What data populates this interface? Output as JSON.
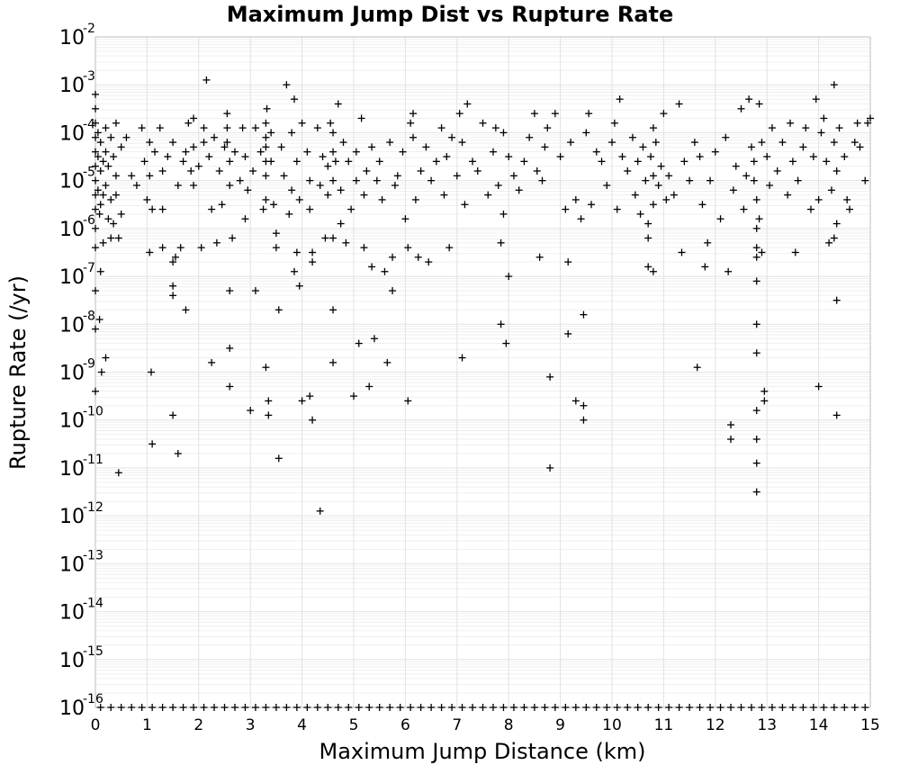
{
  "chart_data": {
    "type": "scatter",
    "title": "Maximum Jump Dist vs Rupture Rate",
    "xlabel": "Maximum Jump Distance (km)",
    "ylabel": "Rupture Rate (/yr)",
    "xlim": [
      0,
      15
    ],
    "ylim_exponents": [
      -16,
      -2
    ],
    "y_scale": "log",
    "grid": true,
    "marker": "plus",
    "x_ticks": [
      "0",
      "1",
      "2",
      "3",
      "4",
      "5",
      "6",
      "7",
      "8",
      "9",
      "10",
      "11",
      "12",
      "13",
      "14",
      "15"
    ],
    "y_ticks": [
      {
        "base": "10",
        "exp": "-2"
      },
      {
        "base": "10",
        "exp": "-3"
      },
      {
        "base": "10",
        "exp": "-4"
      },
      {
        "base": "10",
        "exp": "-5"
      },
      {
        "base": "10",
        "exp": "-6"
      },
      {
        "base": "10",
        "exp": "-7"
      },
      {
        "base": "10",
        "exp": "-8"
      },
      {
        "base": "10",
        "exp": "-9"
      },
      {
        "base": "10",
        "exp": "-10"
      },
      {
        "base": "10",
        "exp": "-11"
      },
      {
        "base": "10",
        "exp": "-12"
      },
      {
        "base": "10",
        "exp": "-13"
      },
      {
        "base": "10",
        "exp": "-14"
      },
      {
        "base": "10",
        "exp": "-15"
      },
      {
        "base": "10",
        "exp": "-16"
      }
    ],
    "points": [
      [
        0.0,
        -3.2
      ],
      [
        0.0,
        -3.5
      ],
      [
        0.0,
        -3.8
      ],
      [
        0.0,
        -4.1
      ],
      [
        0.0,
        -4.4
      ],
      [
        0.0,
        -4.7
      ],
      [
        0.0,
        -5.0
      ],
      [
        0.0,
        -5.3
      ],
      [
        0.0,
        -5.6
      ],
      [
        0.0,
        -6.0
      ],
      [
        0.0,
        -6.4
      ],
      [
        0.0,
        -7.3
      ],
      [
        0.0,
        -8.1
      ],
      [
        0.0,
        -9.4
      ],
      [
        0.05,
        -4.0
      ],
      [
        0.05,
        -4.5
      ],
      [
        0.05,
        -5.2
      ],
      [
        0.08,
        -5.7
      ],
      [
        0.08,
        -7.9
      ],
      [
        0.1,
        -4.2
      ],
      [
        0.1,
        -4.8
      ],
      [
        0.1,
        -5.5
      ],
      [
        0.1,
        -6.9
      ],
      [
        0.12,
        -9.0
      ],
      [
        0.15,
        -4.6
      ],
      [
        0.15,
        -5.3
      ],
      [
        0.15,
        -6.3
      ],
      [
        0.2,
        -3.9
      ],
      [
        0.2,
        -4.4
      ],
      [
        0.2,
        -5.1
      ],
      [
        0.2,
        -8.7
      ],
      [
        0.25,
        -4.7
      ],
      [
        0.25,
        -5.8
      ],
      [
        0.3,
        -4.1
      ],
      [
        0.3,
        -5.4
      ],
      [
        0.3,
        -6.2
      ],
      [
        0.35,
        -4.5
      ],
      [
        0.35,
        -5.9
      ],
      [
        0.4,
        -3.8
      ],
      [
        0.4,
        -4.9
      ],
      [
        0.4,
        -5.3
      ],
      [
        0.45,
        -6.2
      ],
      [
        0.45,
        -11.1
      ],
      [
        0.5,
        -4.3
      ],
      [
        0.5,
        -5.7
      ],
      [
        0.6,
        -4.1
      ],
      [
        0.7,
        -4.9
      ],
      [
        0.8,
        -5.1
      ],
      [
        0.9,
        -3.9
      ],
      [
        0.95,
        -4.6
      ],
      [
        1.0,
        -5.4
      ],
      [
        1.05,
        -4.2
      ],
      [
        1.05,
        -4.9
      ],
      [
        1.05,
        -6.5
      ],
      [
        1.08,
        -9.0
      ],
      [
        1.1,
        -5.6
      ],
      [
        1.15,
        -4.4
      ],
      [
        1.1,
        -10.5
      ],
      [
        1.25,
        -3.9
      ],
      [
        1.3,
        -4.8
      ],
      [
        1.3,
        -5.6
      ],
      [
        1.3,
        -6.4
      ],
      [
        1.4,
        -4.5
      ],
      [
        1.5,
        -4.2
      ],
      [
        1.5,
        -6.7
      ],
      [
        1.5,
        -7.2
      ],
      [
        1.5,
        -7.4
      ],
      [
        1.5,
        -9.9
      ],
      [
        1.55,
        -6.6
      ],
      [
        1.6,
        -5.1
      ],
      [
        1.6,
        -10.7
      ],
      [
        1.65,
        -6.4
      ],
      [
        1.7,
        -4.6
      ],
      [
        1.75,
        -4.4
      ],
      [
        1.75,
        -7.7
      ],
      [
        1.8,
        -3.8
      ],
      [
        1.85,
        -4.8
      ],
      [
        1.9,
        -5.1
      ],
      [
        1.9,
        -4.3
      ],
      [
        1.9,
        -3.7
      ],
      [
        2.0,
        -4.7
      ],
      [
        2.05,
        -6.4
      ],
      [
        2.1,
        -4.2
      ],
      [
        2.1,
        -3.9
      ],
      [
        2.15,
        -2.9
      ],
      [
        2.2,
        -4.5
      ],
      [
        2.25,
        -5.6
      ],
      [
        2.25,
        -8.8
      ],
      [
        2.3,
        -4.1
      ],
      [
        2.35,
        -6.3
      ],
      [
        2.4,
        -4.8
      ],
      [
        2.45,
        -5.5
      ],
      [
        2.5,
        -4.3
      ],
      [
        2.55,
        -3.6
      ],
      [
        2.55,
        -3.9
      ],
      [
        2.55,
        -4.2
      ],
      [
        2.6,
        -4.6
      ],
      [
        2.6,
        -5.1
      ],
      [
        2.6,
        -7.3
      ],
      [
        2.6,
        -8.5
      ],
      [
        2.6,
        -9.3
      ],
      [
        2.65,
        -6.2
      ],
      [
        2.7,
        -4.4
      ],
      [
        2.8,
        -5.0
      ],
      [
        2.85,
        -3.9
      ],
      [
        2.9,
        -4.5
      ],
      [
        2.9,
        -5.8
      ],
      [
        2.95,
        -5.2
      ],
      [
        3.0,
        -9.8
      ],
      [
        3.05,
        -4.8
      ],
      [
        3.1,
        -3.9
      ],
      [
        3.1,
        -7.3
      ],
      [
        3.2,
        -4.4
      ],
      [
        3.25,
        -5.6
      ],
      [
        3.3,
        -3.8
      ],
      [
        3.3,
        -4.1
      ],
      [
        3.3,
        -4.3
      ],
      [
        3.3,
        -4.6
      ],
      [
        3.3,
        -4.9
      ],
      [
        3.3,
        -5.4
      ],
      [
        3.3,
        -8.9
      ],
      [
        3.32,
        -3.5
      ],
      [
        3.35,
        -9.6
      ],
      [
        3.35,
        -9.9
      ],
      [
        3.4,
        -4.0
      ],
      [
        3.4,
        -4.6
      ],
      [
        3.45,
        -5.5
      ],
      [
        3.5,
        -6.1
      ],
      [
        3.5,
        -6.4
      ],
      [
        3.55,
        -7.7
      ],
      [
        3.55,
        -10.8
      ],
      [
        3.6,
        -4.3
      ],
      [
        3.65,
        -4.9
      ],
      [
        3.7,
        -3.0
      ],
      [
        3.75,
        -5.7
      ],
      [
        3.8,
        -4.0
      ],
      [
        3.8,
        -5.2
      ],
      [
        3.85,
        -3.3
      ],
      [
        3.85,
        -6.9
      ],
      [
        3.9,
        -4.6
      ],
      [
        3.9,
        -6.5
      ],
      [
        3.95,
        -5.4
      ],
      [
        3.95,
        -7.2
      ],
      [
        4.0,
        -3.8
      ],
      [
        4.0,
        -9.6
      ],
      [
        4.1,
        -4.4
      ],
      [
        4.15,
        -5.0
      ],
      [
        4.15,
        -5.6
      ],
      [
        4.15,
        -9.5
      ],
      [
        4.2,
        -6.5
      ],
      [
        4.2,
        -6.7
      ],
      [
        4.2,
        -10.0
      ],
      [
        4.3,
        -3.9
      ],
      [
        4.35,
        -5.1
      ],
      [
        4.35,
        -11.9
      ],
      [
        4.4,
        -4.5
      ],
      [
        4.45,
        -6.2
      ],
      [
        4.5,
        -4.7
      ],
      [
        4.5,
        -5.3
      ],
      [
        4.55,
        -3.8
      ],
      [
        4.6,
        -4.0
      ],
      [
        4.6,
        -4.4
      ],
      [
        4.6,
        -5.0
      ],
      [
        4.6,
        -6.2
      ],
      [
        4.6,
        -7.7
      ],
      [
        4.6,
        -8.8
      ],
      [
        4.65,
        -4.6
      ],
      [
        4.7,
        -3.4
      ],
      [
        4.75,
        -5.2
      ],
      [
        4.75,
        -5.9
      ],
      [
        4.8,
        -4.2
      ],
      [
        4.85,
        -6.3
      ],
      [
        4.9,
        -4.6
      ],
      [
        4.95,
        -5.6
      ],
      [
        5.0,
        -9.5
      ],
      [
        5.05,
        -4.4
      ],
      [
        5.05,
        -5.0
      ],
      [
        5.1,
        -8.4
      ],
      [
        5.15,
        -3.7
      ],
      [
        5.2,
        -6.4
      ],
      [
        5.2,
        -5.3
      ],
      [
        5.25,
        -4.8
      ],
      [
        5.3,
        -9.3
      ],
      [
        5.35,
        -4.3
      ],
      [
        5.35,
        -6.8
      ],
      [
        5.4,
        -8.3
      ],
      [
        5.45,
        -5.0
      ],
      [
        5.5,
        -4.6
      ],
      [
        5.55,
        -5.4
      ],
      [
        5.6,
        -6.9
      ],
      [
        5.65,
        -8.8
      ],
      [
        5.7,
        -4.2
      ],
      [
        5.75,
        -6.6
      ],
      [
        5.75,
        -7.3
      ],
      [
        5.8,
        -5.1
      ],
      [
        5.85,
        -4.9
      ],
      [
        5.95,
        -4.4
      ],
      [
        6.0,
        -5.8
      ],
      [
        6.05,
        -6.4
      ],
      [
        6.05,
        -9.6
      ],
      [
        6.1,
        -3.8
      ],
      [
        6.15,
        -3.6
      ],
      [
        6.15,
        -4.1
      ],
      [
        6.2,
        -5.4
      ],
      [
        6.25,
        -6.6
      ],
      [
        6.3,
        -4.8
      ],
      [
        6.4,
        -4.3
      ],
      [
        6.45,
        -6.7
      ],
      [
        6.5,
        -5.0
      ],
      [
        6.6,
        -4.6
      ],
      [
        6.7,
        -3.9
      ],
      [
        6.75,
        -5.3
      ],
      [
        6.8,
        -4.5
      ],
      [
        6.85,
        -6.4
      ],
      [
        6.9,
        -4.1
      ],
      [
        7.0,
        -4.9
      ],
      [
        7.05,
        -3.6
      ],
      [
        7.1,
        -4.2
      ],
      [
        7.1,
        -8.7
      ],
      [
        7.15,
        -5.5
      ],
      [
        7.2,
        -3.4
      ],
      [
        7.3,
        -4.6
      ],
      [
        7.4,
        -4.8
      ],
      [
        7.5,
        -3.8
      ],
      [
        7.6,
        -5.3
      ],
      [
        7.7,
        -4.4
      ],
      [
        7.75,
        -3.9
      ],
      [
        7.8,
        -5.1
      ],
      [
        7.85,
        -6.3
      ],
      [
        7.85,
        -8.0
      ],
      [
        7.9,
        -4.0
      ],
      [
        7.9,
        -5.7
      ],
      [
        7.95,
        -8.4
      ],
      [
        8.0,
        -4.5
      ],
      [
        8.0,
        -7.0
      ],
      [
        8.1,
        -4.9
      ],
      [
        8.2,
        -5.2
      ],
      [
        8.3,
        -4.6
      ],
      [
        8.4,
        -4.1
      ],
      [
        8.5,
        -3.6
      ],
      [
        8.55,
        -4.8
      ],
      [
        8.6,
        -6.6
      ],
      [
        8.65,
        -5.0
      ],
      [
        8.7,
        -4.3
      ],
      [
        8.75,
        -3.9
      ],
      [
        8.8,
        -9.1
      ],
      [
        8.8,
        -11.0
      ],
      [
        8.9,
        -3.6
      ],
      [
        9.0,
        -4.5
      ],
      [
        9.1,
        -5.6
      ],
      [
        9.15,
        -8.2
      ],
      [
        9.15,
        -6.7
      ],
      [
        9.2,
        -4.2
      ],
      [
        9.3,
        -5.4
      ],
      [
        9.3,
        -9.6
      ],
      [
        9.4,
        -5.8
      ],
      [
        9.45,
        -7.8
      ],
      [
        9.45,
        -9.7
      ],
      [
        9.45,
        -10.0
      ],
      [
        9.5,
        -4.0
      ],
      [
        9.55,
        -3.6
      ],
      [
        9.6,
        -5.5
      ],
      [
        9.7,
        -4.4
      ],
      [
        9.8,
        -4.6
      ],
      [
        9.9,
        -5.1
      ],
      [
        10.0,
        -4.2
      ],
      [
        10.05,
        -3.8
      ],
      [
        10.1,
        -5.6
      ],
      [
        10.15,
        -3.3
      ],
      [
        10.2,
        -4.5
      ],
      [
        10.3,
        -4.8
      ],
      [
        10.4,
        -4.1
      ],
      [
        10.45,
        -5.3
      ],
      [
        10.5,
        -4.6
      ],
      [
        10.55,
        -5.7
      ],
      [
        10.6,
        -4.3
      ],
      [
        10.65,
        -5.0
      ],
      [
        10.7,
        -5.9
      ],
      [
        10.7,
        -6.2
      ],
      [
        10.7,
        -6.8
      ],
      [
        10.75,
        -4.5
      ],
      [
        10.8,
        -3.9
      ],
      [
        10.8,
        -4.9
      ],
      [
        10.8,
        -5.5
      ],
      [
        10.8,
        -6.9
      ],
      [
        10.85,
        -4.2
      ],
      [
        10.9,
        -5.1
      ],
      [
        10.95,
        -4.7
      ],
      [
        11.0,
        -3.6
      ],
      [
        11.05,
        -5.4
      ],
      [
        11.1,
        -4.9
      ],
      [
        11.2,
        -5.3
      ],
      [
        11.3,
        -3.4
      ],
      [
        11.35,
        -6.5
      ],
      [
        11.4,
        -4.6
      ],
      [
        11.5,
        -5.0
      ],
      [
        11.6,
        -4.2
      ],
      [
        11.65,
        -8.9
      ],
      [
        11.7,
        -4.5
      ],
      [
        11.75,
        -5.5
      ],
      [
        11.8,
        -6.8
      ],
      [
        11.85,
        -6.3
      ],
      [
        11.9,
        -5.0
      ],
      [
        12.0,
        -4.4
      ],
      [
        12.1,
        -5.8
      ],
      [
        12.2,
        -4.1
      ],
      [
        12.25,
        -6.9
      ],
      [
        12.3,
        -10.1
      ],
      [
        12.3,
        -10.4
      ],
      [
        12.35,
        -5.2
      ],
      [
        12.4,
        -4.7
      ],
      [
        12.5,
        -3.5
      ],
      [
        12.55,
        -5.6
      ],
      [
        12.6,
        -4.9
      ],
      [
        12.65,
        -3.3
      ],
      [
        12.7,
        -4.3
      ],
      [
        12.75,
        -4.6
      ],
      [
        12.75,
        -5.0
      ],
      [
        12.8,
        -5.4
      ],
      [
        12.8,
        -6.0
      ],
      [
        12.8,
        -6.4
      ],
      [
        12.8,
        -6.6
      ],
      [
        12.8,
        -7.1
      ],
      [
        12.8,
        -8.0
      ],
      [
        12.8,
        -8.6
      ],
      [
        12.8,
        -9.8
      ],
      [
        12.8,
        -10.4
      ],
      [
        12.8,
        -10.9
      ],
      [
        12.8,
        -11.5
      ],
      [
        12.85,
        -3.4
      ],
      [
        12.85,
        -5.8
      ],
      [
        12.9,
        -4.2
      ],
      [
        12.9,
        -6.5
      ],
      [
        12.95,
        -9.4
      ],
      [
        12.95,
        -9.6
      ],
      [
        13.0,
        -4.5
      ],
      [
        13.05,
        -5.1
      ],
      [
        13.1,
        -3.9
      ],
      [
        13.2,
        -4.8
      ],
      [
        13.3,
        -4.2
      ],
      [
        13.4,
        -5.3
      ],
      [
        13.45,
        -3.8
      ],
      [
        13.5,
        -4.6
      ],
      [
        13.55,
        -6.5
      ],
      [
        13.6,
        -5.0
      ],
      [
        13.7,
        -4.3
      ],
      [
        13.75,
        -3.9
      ],
      [
        13.85,
        -5.6
      ],
      [
        13.9,
        -4.5
      ],
      [
        13.95,
        -3.3
      ],
      [
        14.0,
        -5.4
      ],
      [
        14.0,
        -9.3
      ],
      [
        14.05,
        -4.0
      ],
      [
        14.1,
        -3.7
      ],
      [
        14.15,
        -4.6
      ],
      [
        14.2,
        -6.3
      ],
      [
        14.25,
        -5.2
      ],
      [
        14.3,
        -3.0
      ],
      [
        14.3,
        -4.2
      ],
      [
        14.3,
        -6.2
      ],
      [
        14.35,
        -4.8
      ],
      [
        14.35,
        -5.9
      ],
      [
        14.35,
        -7.5
      ],
      [
        14.35,
        -9.9
      ],
      [
        14.4,
        -3.9
      ],
      [
        14.5,
        -4.5
      ],
      [
        14.55,
        -5.4
      ],
      [
        14.6,
        -5.6
      ],
      [
        14.7,
        -4.2
      ],
      [
        14.75,
        -3.8
      ],
      [
        14.8,
        -4.3
      ],
      [
        14.9,
        -5.0
      ],
      [
        14.95,
        -3.8
      ],
      [
        15.0,
        -3.7
      ]
    ],
    "floor_points": {
      "y": -16,
      "x": [
        0.1,
        0.3,
        0.5,
        0.7,
        0.9,
        1.1,
        1.3,
        1.5,
        1.7,
        1.9,
        2.1,
        2.3,
        2.5,
        2.7,
        2.9,
        3.1,
        3.3,
        3.5,
        3.7,
        3.9,
        4.1,
        4.3,
        4.5,
        4.7,
        4.9,
        5.1,
        5.3,
        5.5,
        5.7,
        5.9,
        6.1,
        6.3,
        6.5,
        6.7,
        6.9,
        7.1,
        7.3,
        7.5,
        7.7,
        7.9,
        8.1,
        8.3,
        8.5,
        8.7,
        8.9,
        9.1,
        9.3,
        9.5,
        9.7,
        9.9,
        10.1,
        10.3,
        10.5,
        10.7,
        10.9,
        11.1,
        11.3,
        11.5,
        11.7,
        11.9,
        12.1,
        12.3,
        12.5,
        12.7,
        12.9,
        13.1,
        13.3,
        13.5,
        13.7,
        13.9,
        14.1,
        14.3,
        14.5,
        14.7,
        14.9
      ]
    }
  }
}
